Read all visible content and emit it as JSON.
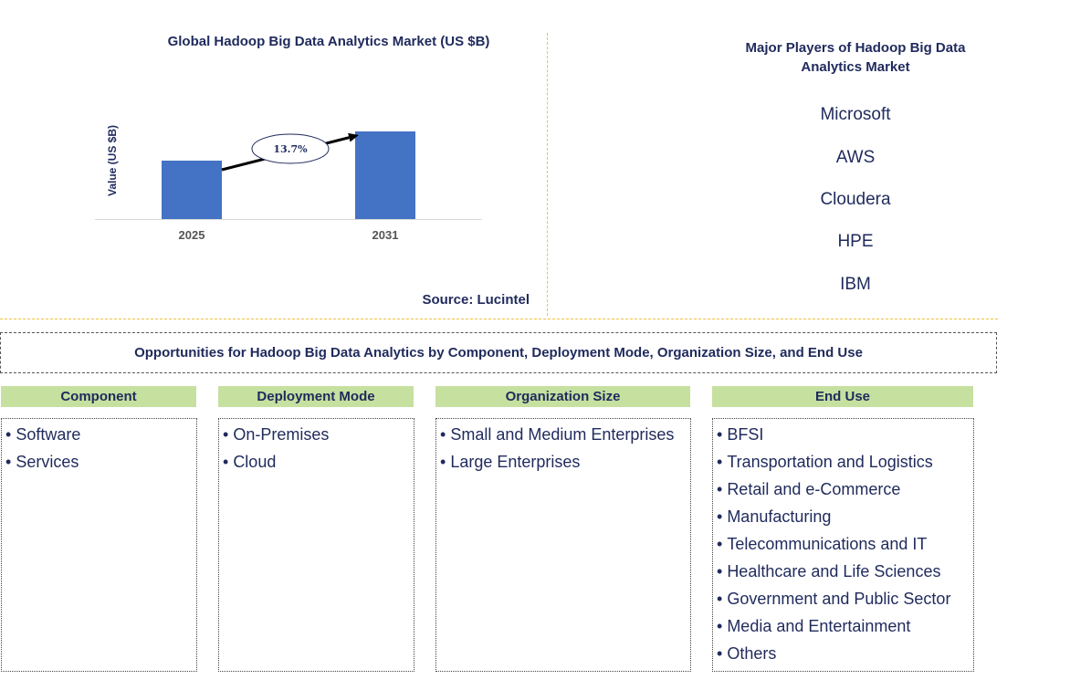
{
  "chart_data": {
    "type": "bar",
    "title": "Global Hadoop Big Data Analytics Market (US $B)",
    "ylabel": "Value (US $B)",
    "categories": [
      "2025",
      "2031"
    ],
    "values": [
      64,
      96
    ],
    "ylim": [
      0,
      100
    ],
    "annotation": "13.7%",
    "source": "Source: Lucintel",
    "bar_color": "#4472c4"
  },
  "players": {
    "title": "Major Players of Hadoop Big Data Analytics Market",
    "items": [
      "Microsoft",
      "AWS",
      "Cloudera",
      "HPE",
      "IBM"
    ]
  },
  "opportunities": {
    "title": "Opportunities for Hadoop Big Data Analytics by Component, Deployment Mode, Organization Size, and End Use"
  },
  "segments": [
    {
      "heading": "Component",
      "items": [
        "Software",
        "Services"
      ]
    },
    {
      "heading": "Deployment Mode",
      "items": [
        "On-Premises",
        "Cloud"
      ]
    },
    {
      "heading": "Organization Size",
      "items": [
        "Small and Medium Enterprises",
        "Large Enterprises"
      ]
    },
    {
      "heading": "End Use",
      "items": [
        "BFSI",
        "Transportation and Logistics",
        "Retail and e-Commerce",
        "Manufacturing",
        "Telecommunications and IT",
        "Healthcare and Life Sciences",
        "Government and Public Sector",
        "Media and Entertainment",
        "Others"
      ]
    }
  ],
  "colors": {
    "header_fill": "#c6e0a0",
    "text": "#1f2a5c",
    "divider": "#f0c040"
  }
}
